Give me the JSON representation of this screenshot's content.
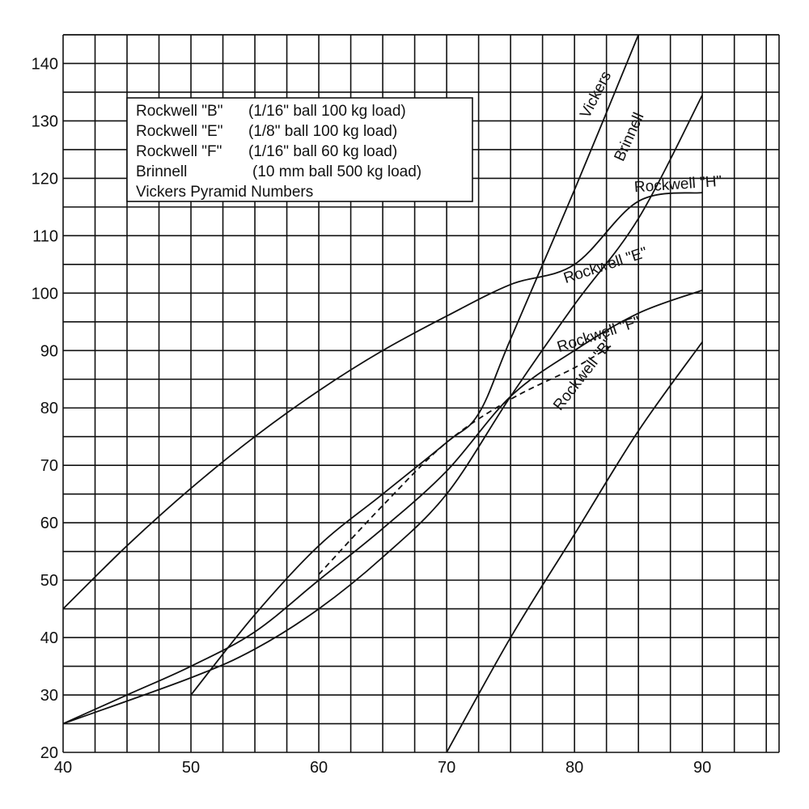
{
  "chart_data": {
    "type": "line",
    "title": "",
    "xlabel": "",
    "ylabel": "",
    "xlim": [
      40,
      96
    ],
    "ylim": [
      20,
      145
    ],
    "x_ticks": [
      40,
      50,
      60,
      70,
      80,
      90
    ],
    "y_ticks": [
      20,
      30,
      40,
      50,
      60,
      70,
      80,
      90,
      100,
      110,
      120,
      130,
      140
    ],
    "x_grid_step": 2.5,
    "y_grid_step": 5,
    "grid": true,
    "legend_position": "top-left",
    "legend": [
      {
        "name": "Rockwell \"B\"",
        "desc": "(1/16\" ball 100 kg load)"
      },
      {
        "name": "Rockwell \"E\"",
        "desc": "(1/8\" ball 100 kg load)"
      },
      {
        "name": "Rockwell \"F\"",
        "desc": "(1/16\" ball 60 kg load)"
      },
      {
        "name": "Brinnell",
        "desc": "(10 mm ball 500 kg load)"
      },
      {
        "name": "Vickers Pyramid Numbers",
        "desc": ""
      }
    ],
    "series": [
      {
        "name": "Rockwell \"H\"",
        "dash": false,
        "label_at": [
          84.7,
          117.6
        ],
        "label_angle": -4,
        "points": [
          [
            40,
            45
          ],
          [
            45,
            56
          ],
          [
            50,
            66
          ],
          [
            55,
            75
          ],
          [
            60,
            83
          ],
          [
            65,
            90
          ],
          [
            70,
            96
          ],
          [
            75,
            101.5
          ],
          [
            80,
            105
          ],
          [
            85,
            116
          ],
          [
            90,
            117.5
          ]
        ]
      },
      {
        "name": "Rockwell \"E\"",
        "dash": false,
        "label_at": [
          79.3,
          101.7
        ],
        "label_angle": -18,
        "points": [
          [
            40,
            25
          ],
          [
            45,
            30
          ],
          [
            50,
            35
          ],
          [
            55,
            41
          ],
          [
            60,
            50
          ],
          [
            65,
            59
          ],
          [
            70,
            69
          ],
          [
            75,
            82
          ],
          [
            80,
            90
          ],
          [
            85,
            96.5
          ],
          [
            90,
            100.5
          ]
        ]
      },
      {
        "name": "Rockwell \"F\"",
        "dash": true,
        "label_at": [
          78.8,
          89.7
        ],
        "label_angle": -18,
        "points": [
          [
            60,
            51
          ],
          [
            65,
            63
          ],
          [
            70,
            74
          ],
          [
            75,
            81.5
          ],
          [
            80,
            87
          ],
          [
            83,
            91
          ]
        ]
      },
      {
        "name": "Rockwell \"B\"",
        "dash": false,
        "label_at": [
          78.9,
          79.4
        ],
        "label_angle": -52,
        "points": [
          [
            70,
            20
          ],
          [
            75,
            40
          ],
          [
            80,
            58
          ],
          [
            85,
            76
          ],
          [
            90,
            91.5
          ]
        ]
      },
      {
        "name": "Brinnell",
        "dash": false,
        "label_at": [
          83.8,
          122.8
        ],
        "label_angle": -66,
        "points": [
          [
            40,
            25
          ],
          [
            50,
            33
          ],
          [
            55,
            38
          ],
          [
            60,
            45
          ],
          [
            65,
            54
          ],
          [
            70,
            65
          ],
          [
            75,
            82
          ],
          [
            80,
            98
          ],
          [
            85,
            113
          ],
          [
            90,
            134.5
          ]
        ]
      },
      {
        "name": "Vickers",
        "dash": false,
        "label_at": [
          81.1,
          130.3
        ],
        "label_angle": -63,
        "points": [
          [
            50,
            30
          ],
          [
            55,
            44
          ],
          [
            60,
            56
          ],
          [
            65,
            65
          ],
          [
            70,
            74
          ],
          [
            72.5,
            79
          ],
          [
            75,
            92
          ],
          [
            80,
            118
          ],
          [
            85,
            145
          ]
        ]
      }
    ]
  }
}
